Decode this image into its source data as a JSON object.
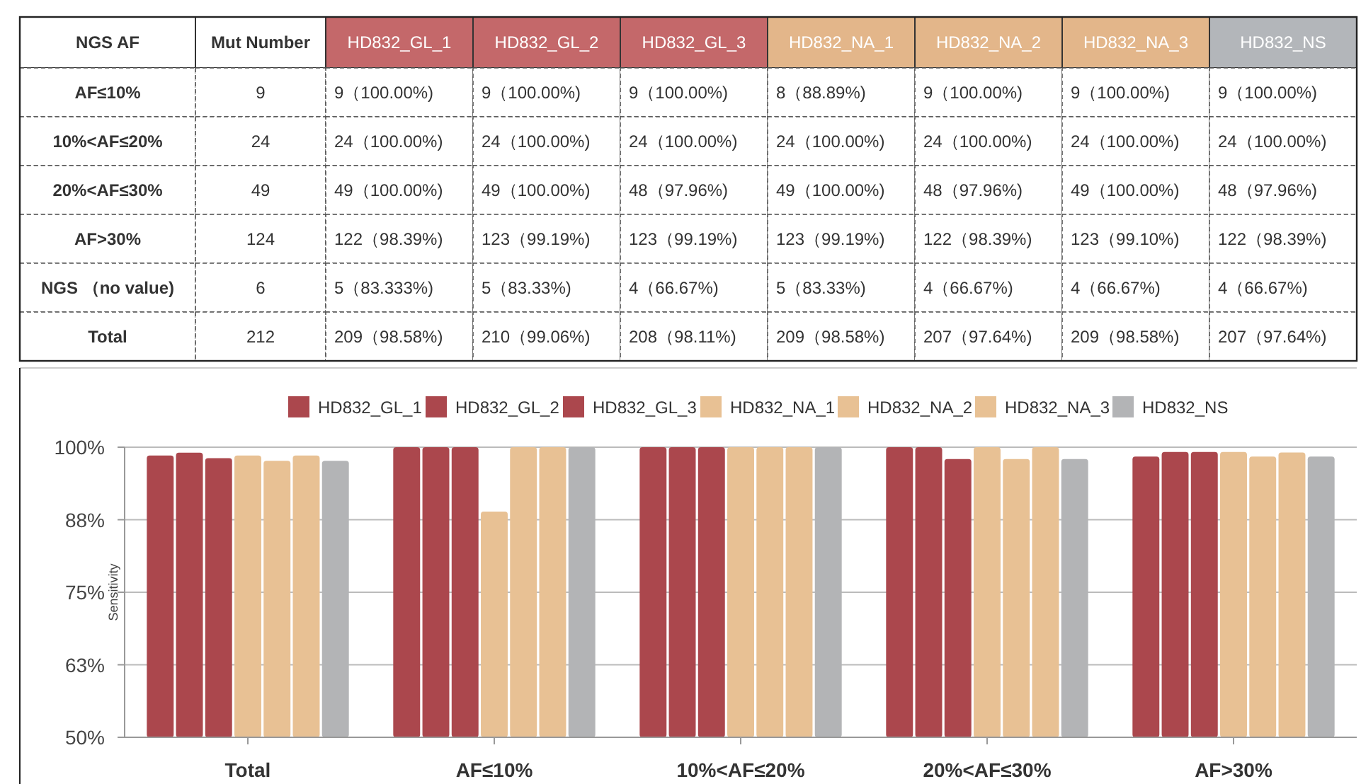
{
  "chart_data": [
    {
      "type": "other",
      "categories": [
        "NGS AF",
        "Mut Number",
        "HD832_GL_1",
        "HD832_GL_2",
        "HD832_GL_3",
        "HD832_NA_1",
        "HD832_NA_2",
        "HD832_NA_3",
        "HD832_NS"
      ],
      "colors": [
        "#ffffff",
        "#ffffff",
        "#c4686a",
        "#c4686a",
        "#c4686a",
        "#e3b68a",
        "#e3b68a",
        "#e3b68a",
        "#b3b6ba"
      ],
      "cell_labels": [
        [
          "AF≤10%",
          "9",
          "9（100.00%)",
          "9（100.00%)",
          "9（100.00%)",
          "8（88.89%)",
          "9（100.00%)",
          "9（100.00%)",
          "9（100.00%)"
        ],
        [
          "10%<AF≤20%",
          "24",
          "24（100.00%)",
          "24（100.00%)",
          "24（100.00%)",
          "24（100.00%)",
          "24（100.00%)",
          "24（100.00%)",
          "24（100.00%)"
        ],
        [
          "20%<AF≤30%",
          "49",
          "49（100.00%)",
          "49（100.00%)",
          "48（97.96%)",
          "49（100.00%)",
          "48（97.96%)",
          "49（100.00%)",
          "48（97.96%)"
        ],
        [
          "AF>30%",
          "124",
          "122（98.39%)",
          "123（99.19%)",
          "123（99.19%)",
          "123（99.19%)",
          "122（98.39%)",
          "123（99.10%)",
          "122（98.39%)"
        ],
        [
          "NGS （no value)",
          "6",
          "5（83.333%)",
          "5（83.33%)",
          "4（66.67%)",
          "5（83.33%)",
          "4（66.67%)",
          "4（66.67%)",
          "4（66.67%)"
        ],
        [
          "Total",
          "212",
          "209（98.58%)",
          "210（99.06%)",
          "208（98.11%)",
          "209（98.58%)",
          "207（97.64%)",
          "209（98.58%)",
          "207（97.64%)"
        ]
      ]
    },
    {
      "type": "bar",
      "ylabel": "Sensitivity",
      "categories": [
        "Total",
        "AF≤10%",
        "10%<AF≤20%",
        "20%<AF≤30%",
        "AF>30%"
      ],
      "series": [
        {
          "name": "HD832_GL_1",
          "color": "#ab474d",
          "values": [
            98.58,
            100,
            100,
            100,
            98.39
          ]
        },
        {
          "name": "HD832_GL_2",
          "color": "#ab474d",
          "values": [
            99.06,
            100,
            100,
            100,
            99.19
          ]
        },
        {
          "name": "HD832_GL_3",
          "color": "#ab474d",
          "values": [
            98.11,
            100,
            100,
            97.96,
            99.19
          ]
        },
        {
          "name": "HD832_NA_1",
          "color": "#e8c194",
          "values": [
            98.58,
            88.89,
            100,
            100,
            99.19
          ]
        },
        {
          "name": "HD832_NA_2",
          "color": "#e8c194",
          "values": [
            97.64,
            100,
            100,
            97.96,
            98.39
          ]
        },
        {
          "name": "HD832_NA_3",
          "color": "#e8c194",
          "values": [
            98.58,
            100,
            100,
            100,
            99.1
          ]
        },
        {
          "name": "HD832_NS",
          "color": "#b3b4b6",
          "values": [
            97.64,
            100,
            100,
            97.96,
            98.39
          ]
        }
      ],
      "ylim": [
        50,
        100
      ],
      "yticks": [
        {
          "value": 50,
          "label": "50%"
        },
        {
          "value": 62.5,
          "label": "63%"
        },
        {
          "value": 75,
          "label": "75%"
        },
        {
          "value": 87.5,
          "label": "88%"
        },
        {
          "value": 100,
          "label": "100%"
        }
      ],
      "grid": "y",
      "legend": "top"
    }
  ]
}
